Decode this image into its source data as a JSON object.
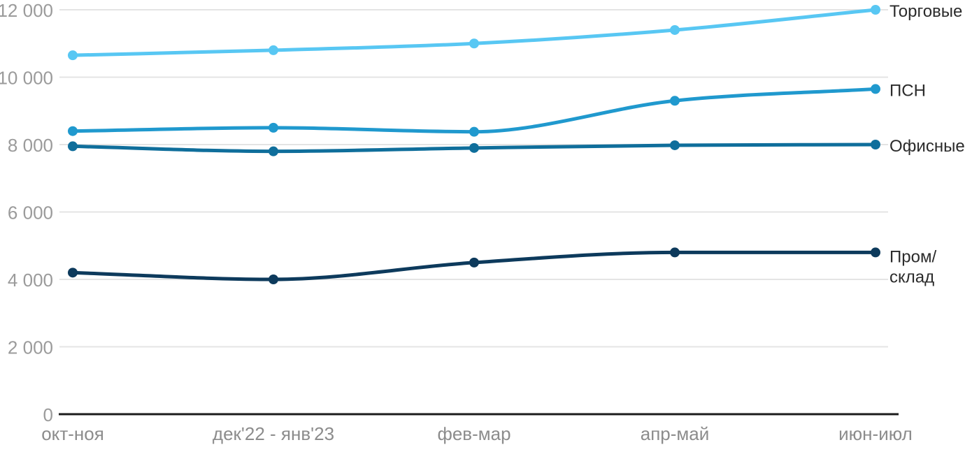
{
  "chart_data": {
    "type": "line",
    "title": "",
    "xlabel": "",
    "ylabel": "",
    "categories": [
      "окт-ноя",
      "дек'22 - янв'23",
      "фев-мар",
      "апр-май",
      "июн-июл"
    ],
    "series": [
      {
        "name": "Торговые",
        "label_lines": [
          "Торговые"
        ],
        "color": "#58C7F3",
        "values": [
          10650,
          10800,
          11000,
          11400,
          12000
        ]
      },
      {
        "name": "ПСН",
        "label_lines": [
          "ПСН"
        ],
        "color": "#2099CE",
        "values": [
          8400,
          8500,
          8380,
          9300,
          9650
        ]
      },
      {
        "name": "Офисные",
        "label_lines": [
          "Офисные"
        ],
        "color": "#0F6E9B",
        "values": [
          7950,
          7800,
          7900,
          7980,
          8000
        ]
      },
      {
        "name": "Пром/склад",
        "label_lines": [
          "Пром/",
          "склад"
        ],
        "color": "#0D3A5C",
        "values": [
          4200,
          4000,
          4500,
          4800,
          4800
        ]
      }
    ],
    "y_axis": {
      "range": [
        0,
        12000
      ],
      "ticks": [
        {
          "value": 0,
          "label": "0"
        },
        {
          "value": 2000,
          "label": "2 000"
        },
        {
          "value": 4000,
          "label": "4 000"
        },
        {
          "value": 6000,
          "label": "6 000"
        },
        {
          "value": 8000,
          "label": "8 000"
        },
        {
          "value": 10000,
          "label": "10 000"
        },
        {
          "value": 12000,
          "label": "12 000"
        }
      ]
    },
    "grid": "horizontal",
    "legend_position": "right"
  },
  "colors": {
    "background": "#FFFFFF",
    "grid": "#E4E4E4",
    "axis": "#1B1B1B",
    "y_tick_text": "#9B9B9B",
    "x_tick_text": "#8C8C8C",
    "legend_text": "#2B2B2B"
  }
}
